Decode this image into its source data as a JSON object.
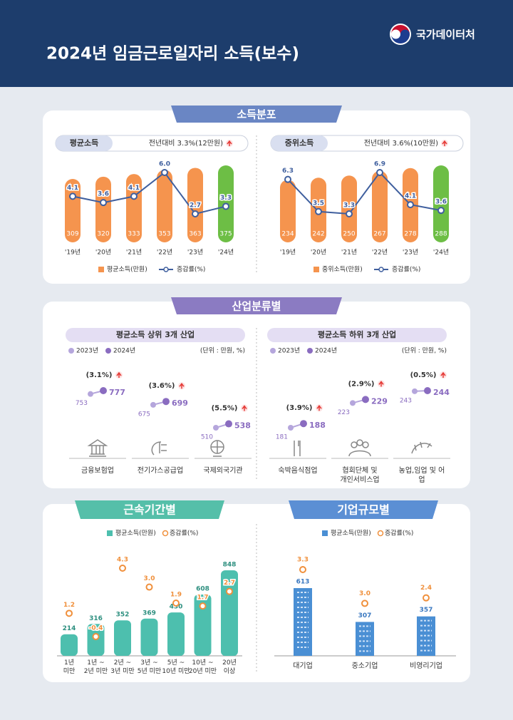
{
  "header": {
    "title": "2024년 임금근로일자리 소득(보수)",
    "brand": "국가데이터처"
  },
  "groups": [
    "소득분포",
    "산업분류별"
  ],
  "chart_data": [
    {
      "type": "bar_line",
      "title": "평균소득",
      "subtitle": "전년대비 3.3%(12만원)",
      "categories": [
        "'19년",
        "'20년",
        "'21년",
        "'22년",
        "'23년",
        "'24년"
      ],
      "series": [
        {
          "name": "평균소득(만원)",
          "color": "#f5944e",
          "highlight_color": "#6dbe45",
          "values": [
            309,
            320,
            333,
            353,
            363,
            375
          ]
        },
        {
          "name": "증감률(%)",
          "color": "#3f5f9e",
          "values": [
            4.1,
            3.6,
            4.1,
            6.0,
            2.7,
            3.3
          ],
          "value_labels": [
            "4.1",
            "3.6",
            "4.1",
            "6.0",
            "2.7",
            "3.3"
          ]
        }
      ]
    },
    {
      "type": "bar_line",
      "title": "중위소득",
      "subtitle": "전년대비 3.6%(10만원)",
      "categories": [
        "'19년",
        "'20년",
        "'21년",
        "'22년",
        "'23년",
        "'24년"
      ],
      "series": [
        {
          "name": "중위소득(만원)",
          "color": "#f5944e",
          "highlight_color": "#6dbe45",
          "values": [
            234,
            242,
            250,
            267,
            278,
            288
          ]
        },
        {
          "name": "증감률(%)",
          "color": "#3f5f9e",
          "values": [
            6.3,
            3.5,
            3.3,
            6.9,
            4.1,
            3.6
          ]
        }
      ]
    },
    {
      "type": "dumbbell",
      "title": "평균소득 상위 3개 산업",
      "unit": "(단위 : 만원, %)",
      "categories": [
        "금융보험업",
        "전기가스공급업",
        "국제외국기관"
      ],
      "series": [
        {
          "name": "2023년",
          "color": "#b5a6dc",
          "values": [
            753,
            675,
            510
          ]
        },
        {
          "name": "2024년",
          "color": "#8a6cc0",
          "values": [
            777,
            699,
            538
          ]
        }
      ],
      "change": {
        "values": [
          3.1,
          3.6,
          5.5
        ],
        "value_labels": [
          "(3.1%)",
          "(3.6%)",
          "(5.5%)"
        ]
      }
    },
    {
      "type": "dumbbell",
      "title": "평균소득 하위 3개 산업",
      "unit": "(단위 : 만원, %)",
      "categories": [
        "숙박음식점업",
        "협회단체 및\n개인서비스업",
        "농업,임업 및 어업"
      ],
      "series": [
        {
          "name": "2023년",
          "color": "#b5a6dc",
          "values": [
            181,
            223,
            243
          ]
        },
        {
          "name": "2024년",
          "color": "#8a6cc0",
          "values": [
            188,
            229,
            244
          ]
        }
      ],
      "change": {
        "values": [
          3.9,
          2.9,
          0.5
        ],
        "value_labels": [
          "(3.9%)",
          "(2.9%)",
          "(0.5%)"
        ]
      }
    },
    {
      "type": "bar_dot",
      "title": "근속기간별",
      "categories": [
        "1년\n미만",
        "1년 ~\n2년 미만",
        "2년 ~\n3년 미만",
        "3년 ~\n5년 미만",
        "5년 ~\n10년 미만",
        "10년 ~\n20년 미만",
        "20년\n이상"
      ],
      "series": [
        {
          "name": "평균소득(만원)",
          "color": "#4dbfae",
          "values": [
            214,
            316,
            352,
            369,
            430,
            608,
            848
          ]
        },
        {
          "name": "증감률(%)",
          "color": "#f0903c",
          "values": [
            1.2,
            -0.4,
            4.3,
            3.0,
            1.9,
            1.7,
            2.7
          ],
          "value_labels": [
            "1.2",
            "-0.4",
            "4.3",
            "3.0",
            "1.9",
            "1.7",
            "2.7"
          ]
        }
      ]
    },
    {
      "type": "building",
      "title": "기업규모별",
      "categories": [
        "대기업",
        "중소기업",
        "비영리기업"
      ],
      "series": [
        {
          "name": "평균소득(만원)",
          "color": "#4a8fd4",
          "values": [
            613,
            307,
            357
          ]
        },
        {
          "name": "증감률(%)",
          "color": "#f0903c",
          "values": [
            3.3,
            3.0,
            2.4
          ],
          "value_labels": [
            "3.3",
            "3.0",
            "2.4"
          ]
        }
      ]
    }
  ]
}
